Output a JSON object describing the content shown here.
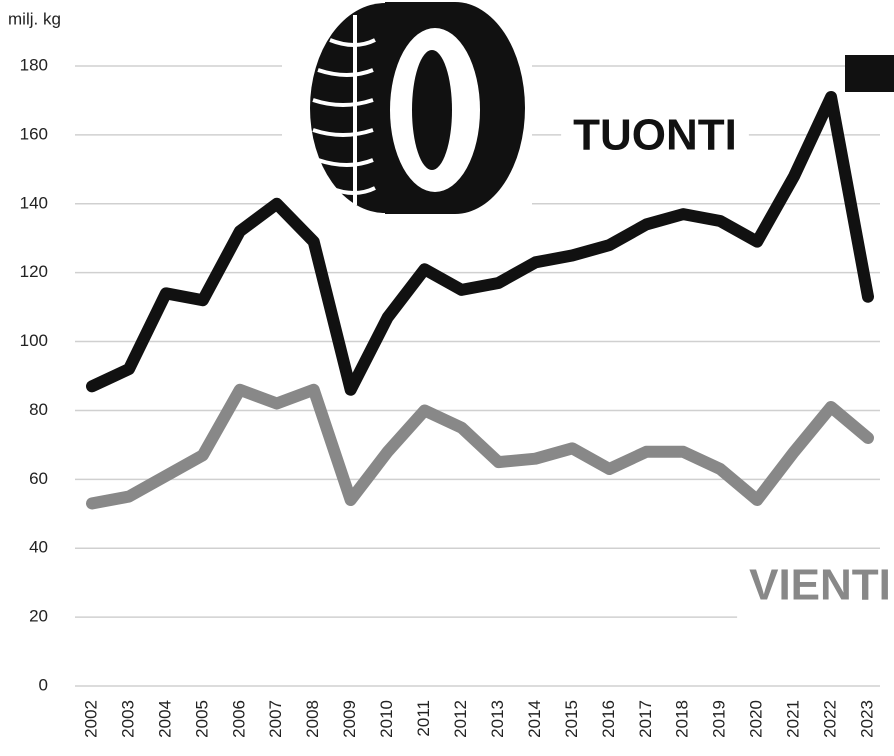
{
  "chart_data": {
    "type": "line",
    "y_label": "milj. kg",
    "x": [
      "2002",
      "2003",
      "2004",
      "2005",
      "2006",
      "2007",
      "2008",
      "2009",
      "2010",
      "2011",
      "2012",
      "2013",
      "2014",
      "2015",
      "2016",
      "2017",
      "2018",
      "2019",
      "2020",
      "2021",
      "2022",
      "2023"
    ],
    "series": [
      {
        "name": "TUONTI",
        "color": "#111111",
        "values": [
          87,
          92,
          114,
          112,
          132,
          140,
          129,
          86,
          107,
          121,
          115,
          117,
          123,
          125,
          128,
          134,
          137,
          135,
          129,
          148,
          171,
          113
        ]
      },
      {
        "name": "VIENTI",
        "color": "#888888",
        "values": [
          53,
          55,
          61,
          67,
          86,
          82,
          86,
          54,
          68,
          80,
          75,
          65,
          66,
          69,
          63,
          68,
          68,
          63,
          54,
          68,
          81,
          72
        ]
      }
    ],
    "ylim": [
      0,
      180
    ],
    "yticks": [
      0,
      20,
      40,
      60,
      80,
      100,
      120,
      140,
      160,
      180
    ],
    "grid": true
  }
}
